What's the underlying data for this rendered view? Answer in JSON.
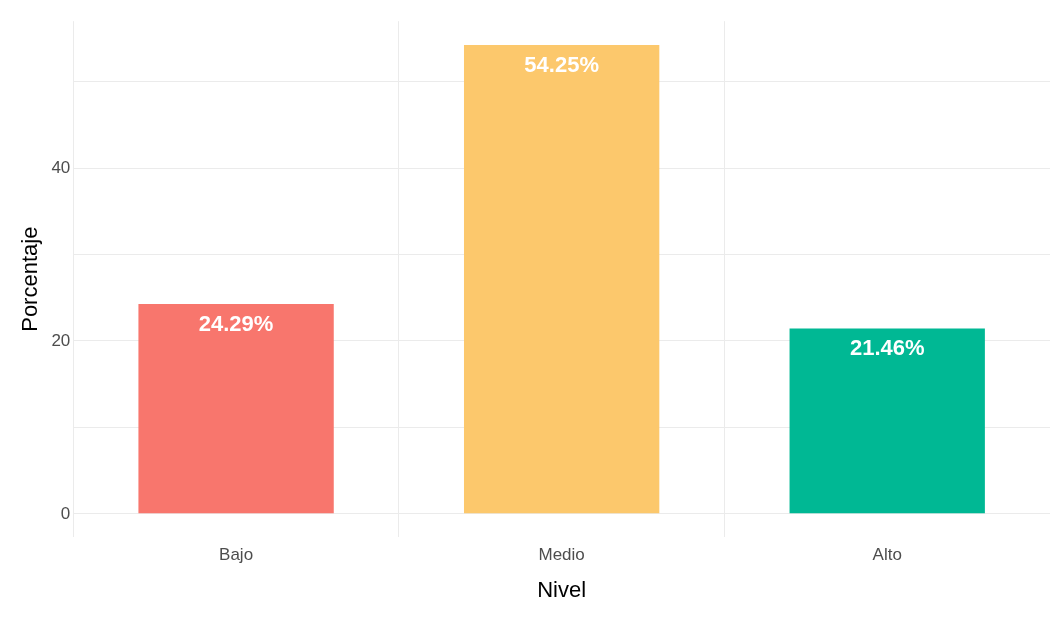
{
  "chart_data": {
    "type": "bar",
    "xlabel": "Nivel",
    "ylabel": "Porcentaje",
    "categories": [
      "Bajo",
      "Medio",
      "Alto"
    ],
    "values": [
      24.29,
      54.25,
      21.46
    ],
    "colors": [
      "#f8766d",
      "#fcc86c",
      "#00b894"
    ],
    "value_labels": [
      "24.29%",
      "54.25%",
      "21.46%"
    ],
    "ylim": [
      -2.7,
      57
    ],
    "yticks": [
      0,
      {
        "value": 10,
        "label": null
      },
      20,
      {
        "value": 30,
        "label": null
      },
      40,
      {
        "value": 50,
        "label": null
      }
    ],
    "grid": true,
    "legend": false
  }
}
